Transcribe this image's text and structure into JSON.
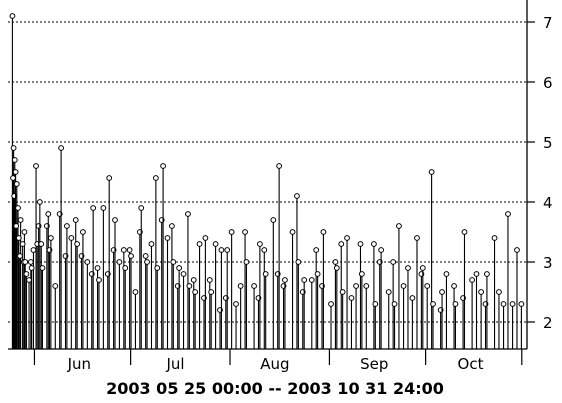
{
  "chart_data": {
    "type": "stem",
    "title": "",
    "xlabel": "2003 05 25 00:00 -- 2003 10 31 24:00",
    "ylabel": "",
    "x_range": [
      "2003-05-25 00:00",
      "2003-10-31 24:00"
    ],
    "ylim": [
      1.55,
      7.3
    ],
    "baseline": 1.55,
    "y_axis_side": "right",
    "y_ticks": [
      2,
      3,
      4,
      5,
      6,
      7
    ],
    "y_tick_labels": [
      "2",
      "3",
      "4",
      "5",
      "6",
      "7"
    ],
    "grid": "horizontal dotted",
    "month_ticks": [
      "2003-06-01",
      "2003-07-01",
      "2003-08-01",
      "2003-09-01",
      "2003-10-01",
      "2003-10-31"
    ],
    "month_labels": [
      {
        "label": "Jun",
        "date": "2003-06-15"
      },
      {
        "label": "Jul",
        "date": "2003-07-15"
      },
      {
        "label": "Aug",
        "date": "2003-08-15"
      },
      {
        "label": "Sep",
        "date": "2003-09-15"
      },
      {
        "label": "Oct",
        "date": "2003-10-15"
      }
    ],
    "x": [
      "2003-05-25",
      "2003-05-25",
      "2003-05-25",
      "2003-05-25",
      "2003-05-25",
      "2003-05-26",
      "2003-05-26",
      "2003-05-26",
      "2003-05-26",
      "2003-05-27",
      "2003-05-27",
      "2003-05-27",
      "2003-05-28",
      "2003-05-28",
      "2003-05-28",
      "2003-05-29",
      "2003-05-29",
      "2003-05-30",
      "2003-05-30",
      "2003-05-31",
      "2003-05-31",
      "2003-06-01",
      "2003-06-01",
      "2003-06-02",
      "2003-06-02",
      "2003-06-03",
      "2003-06-03",
      "2003-06-04",
      "2003-06-05",
      "2003-06-05",
      "2003-06-06",
      "2003-06-07",
      "2003-06-08",
      "2003-06-09",
      "2003-06-10",
      "2003-06-11",
      "2003-06-12",
      "2003-06-13",
      "2003-06-14",
      "2003-06-15",
      "2003-06-16",
      "2003-06-17",
      "2003-06-18",
      "2003-06-19",
      "2003-06-20",
      "2003-06-21",
      "2003-06-22",
      "2003-06-23",
      "2003-06-24",
      "2003-06-25",
      "2003-06-26",
      "2003-06-27",
      "2003-06-28",
      "2003-06-29",
      "2003-06-30",
      "2003-07-01",
      "2003-07-02",
      "2003-07-03",
      "2003-07-04",
      "2003-07-05",
      "2003-07-06",
      "2003-07-07",
      "2003-07-08",
      "2003-07-09",
      "2003-07-10",
      "2003-07-11",
      "2003-07-12",
      "2003-07-13",
      "2003-07-14",
      "2003-07-15",
      "2003-07-16",
      "2003-07-17",
      "2003-07-18",
      "2003-07-19",
      "2003-07-20",
      "2003-07-21",
      "2003-07-22",
      "2003-07-23",
      "2003-07-24",
      "2003-07-25",
      "2003-07-26",
      "2003-07-27",
      "2003-07-28",
      "2003-07-29",
      "2003-07-30",
      "2003-07-31",
      "2003-08-01",
      "2003-08-02",
      "2003-08-04",
      "2003-08-05",
      "2003-08-06",
      "2003-08-08",
      "2003-08-09",
      "2003-08-10",
      "2003-08-11",
      "2003-08-12",
      "2003-08-14",
      "2003-08-15",
      "2003-08-16",
      "2003-08-17",
      "2003-08-18",
      "2003-08-20",
      "2003-08-21",
      "2003-08-22",
      "2003-08-23",
      "2003-08-24",
      "2003-08-26",
      "2003-08-27",
      "2003-08-28",
      "2003-08-29",
      "2003-08-30",
      "2003-09-01",
      "2003-09-02",
      "2003-09-03",
      "2003-09-04",
      "2003-09-05",
      "2003-09-06",
      "2003-09-07",
      "2003-09-09",
      "2003-09-10",
      "2003-09-11",
      "2003-09-12",
      "2003-09-14",
      "2003-09-15",
      "2003-09-16",
      "2003-09-17",
      "2003-09-19",
      "2003-09-20",
      "2003-09-21",
      "2003-09-22",
      "2003-09-24",
      "2003-09-25",
      "2003-09-26",
      "2003-09-28",
      "2003-09-29",
      "2003-09-30",
      "2003-10-01",
      "2003-10-02",
      "2003-10-03",
      "2003-10-05",
      "2003-10-06",
      "2003-10-07",
      "2003-10-09",
      "2003-10-10",
      "2003-10-12",
      "2003-10-13",
      "2003-10-15",
      "2003-10-16",
      "2003-10-18",
      "2003-10-19",
      "2003-10-20",
      "2003-10-22",
      "2003-10-23",
      "2003-10-25",
      "2003-10-26",
      "2003-10-28",
      "2003-10-29",
      "2003-10-30"
    ],
    "y": [
      7.1,
      4.9,
      4.7,
      4.4,
      4.1,
      4.5,
      4.3,
      3.9,
      3.6,
      3.7,
      3.4,
      3.1,
      3.5,
      3.3,
      3.0,
      3.0,
      2.8,
      3.0,
      2.7,
      3.2,
      2.9,
      4.6,
      3.3,
      3.6,
      4.0,
      3.3,
      2.9,
      3.6,
      3.8,
      3.2,
      3.4,
      2.6,
      3.8,
      4.9,
      3.1,
      3.6,
      3.4,
      3.7,
      3.3,
      3.1,
      3.5,
      3.0,
      2.8,
      3.9,
      2.9,
      2.7,
      3.9,
      2.8,
      4.4,
      3.2,
      3.7,
      3.0,
      3.2,
      2.9,
      3.2,
      3.1,
      2.5,
      3.5,
      3.9,
      3.1,
      3.0,
      3.3,
      4.4,
      2.9,
      3.7,
      4.6,
      3.4,
      3.6,
      3.0,
      2.6,
      2.9,
      2.8,
      3.8,
      2.6,
      2.7,
      2.5,
      3.3,
      2.4,
      3.4,
      2.7,
      2.5,
      3.3,
      2.2,
      3.2,
      2.4,
      3.2,
      3.5,
      2.3,
      2.6,
      3.5,
      3.0,
      2.6,
      2.4,
      3.3,
      3.2,
      2.8,
      3.7,
      2.8,
      4.6,
      2.6,
      2.7,
      3.5,
      4.1,
      3.0,
      2.5,
      2.7,
      2.7,
      3.2,
      2.8,
      2.6,
      3.5,
      2.3,
      3.0,
      2.9,
      3.3,
      2.5,
      3.4,
      2.4,
      2.6,
      3.3,
      2.8,
      2.6,
      3.3,
      2.3,
      3.0,
      3.2,
      2.5,
      3.0,
      2.3,
      3.6,
      2.6,
      2.9,
      2.4,
      3.4,
      2.8,
      2.9,
      2.6,
      4.5,
      2.3,
      2.2,
      2.5,
      2.8,
      2.6,
      2.3,
      2.4,
      3.5,
      2.7,
      2.8,
      2.5,
      2.3,
      2.8,
      3.4,
      2.5,
      2.3,
      3.8,
      2.3,
      3.2,
      2.3
    ]
  }
}
